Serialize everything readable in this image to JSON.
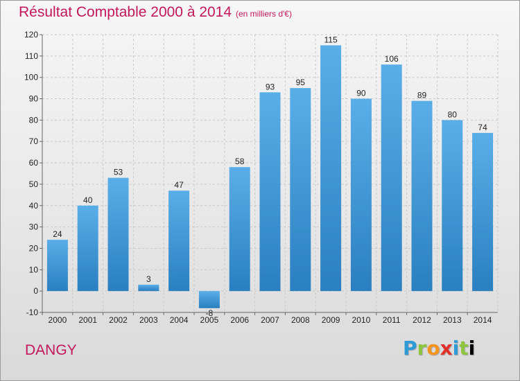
{
  "header": {
    "title": "Résultat Comptable 2000 à 2014",
    "unit": "(en milliers d'€)"
  },
  "footer": {
    "commune": "DANGY",
    "logo_letters": [
      "P",
      "r",
      "o",
      "x",
      "i",
      "t",
      "i"
    ]
  },
  "colors": {
    "accent": "#c2185b",
    "bar_top": "#5aaee8",
    "bar_bottom": "#2a7fc0"
  },
  "chart_data": {
    "type": "bar",
    "title": "Résultat Comptable 2000 à 2014",
    "xlabel": "",
    "ylabel": "",
    "categories": [
      "2000",
      "2001",
      "2002",
      "2003",
      "2004",
      "2005",
      "2006",
      "2007",
      "2008",
      "2009",
      "2010",
      "2011",
      "2012",
      "2013",
      "2014"
    ],
    "values": [
      24,
      40,
      53,
      3,
      47,
      -8,
      58,
      93,
      95,
      115,
      90,
      106,
      89,
      80,
      74
    ],
    "data_labels": [
      "24",
      "40",
      "53",
      "3",
      "47",
      "-8",
      "58",
      "93",
      "95",
      "115",
      "90",
      "106",
      "89",
      "80",
      "74"
    ],
    "ylim": [
      -10,
      120
    ],
    "yticks": [
      -10,
      0,
      10,
      20,
      30,
      40,
      50,
      60,
      70,
      80,
      90,
      100,
      110,
      120
    ],
    "ytick_labels": [
      "-10",
      "0",
      "10",
      "20",
      "30",
      "40",
      "50",
      "60",
      "70",
      "80",
      "90",
      "100",
      "110",
      "120"
    ],
    "grid": true
  }
}
